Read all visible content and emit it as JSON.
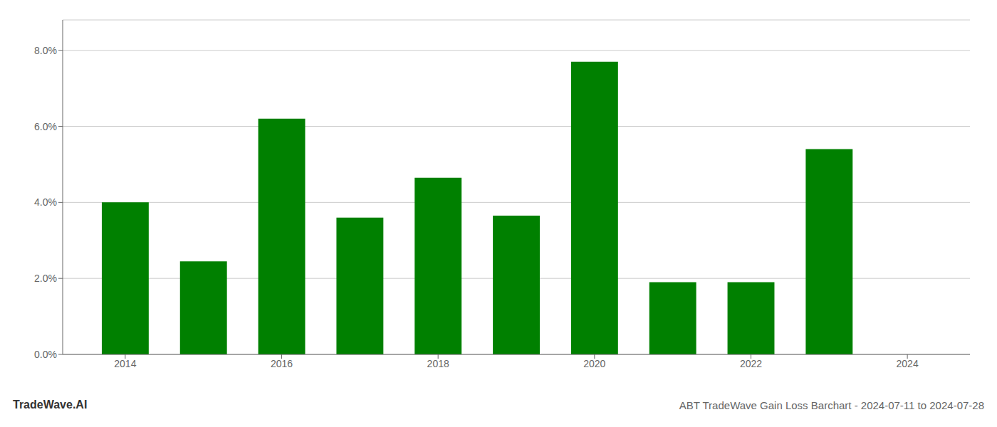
{
  "chart_data": {
    "type": "bar",
    "title": "ABT TradeWave Gain Loss Barchart - 2024-07-11 to 2024-07-28",
    "annotations": [
      "TradeWave.AI"
    ],
    "x": [
      2014,
      2015,
      2016,
      2017,
      2018,
      2019,
      2020,
      2021,
      2022,
      2023
    ],
    "values": [
      0.04,
      0.0245,
      0.062,
      0.036,
      0.0465,
      0.0365,
      0.077,
      0.019,
      0.019,
      0.054
    ],
    "color": "#008000",
    "xlim": [
      2013.2,
      2024.8
    ],
    "xticks": [
      2014,
      2016,
      2018,
      2020,
      2022,
      2024
    ],
    "ylim": [
      0,
      0.088
    ],
    "yticks": [
      {
        "value": 0.0,
        "label": "0.0%"
      },
      {
        "value": 0.02,
        "label": "2.0%"
      },
      {
        "value": 0.04,
        "label": "4.0%"
      },
      {
        "value": 0.06,
        "label": "6.0%"
      },
      {
        "value": 0.08,
        "label": "8.0%"
      }
    ],
    "grid": "y"
  }
}
